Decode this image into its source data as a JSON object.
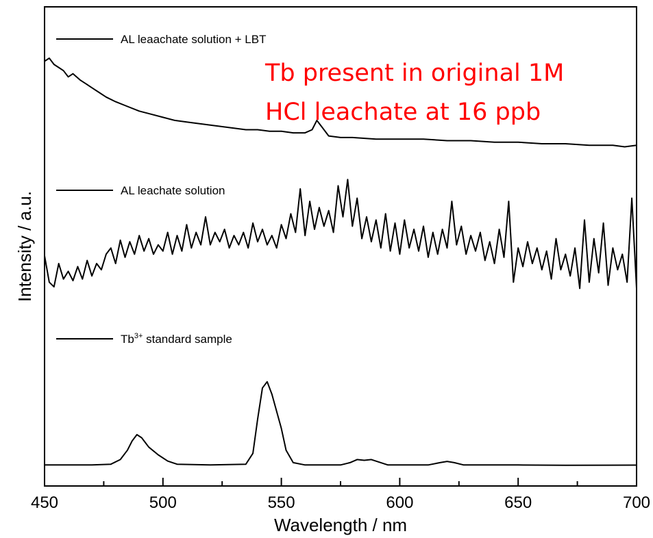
{
  "chart_data": {
    "type": "line",
    "xlabel": "Wavelength / nm",
    "ylabel": "Intensity / a.u.",
    "xlim": [
      450,
      700
    ],
    "xticks": [
      450,
      500,
      550,
      600,
      650,
      700
    ],
    "y_tick_labels": false,
    "grid": false,
    "line_color": "#000000",
    "annotation": {
      "lines": [
        "Tb present in original 1M",
        "HCl leachate at 16 ppb"
      ],
      "color": "#ff0000"
    },
    "series": [
      {
        "name": "AL leaachate solution + LBT",
        "name_sup": "",
        "name_rest": "",
        "offset": 2.0,
        "points": [
          [
            450,
            0.6
          ],
          [
            452,
            0.62
          ],
          [
            454,
            0.58
          ],
          [
            456,
            0.56
          ],
          [
            458,
            0.54
          ],
          [
            460,
            0.5
          ],
          [
            462,
            0.52
          ],
          [
            465,
            0.48
          ],
          [
            468,
            0.45
          ],
          [
            470,
            0.43
          ],
          [
            473,
            0.4
          ],
          [
            476,
            0.37
          ],
          [
            480,
            0.34
          ],
          [
            485,
            0.31
          ],
          [
            490,
            0.28
          ],
          [
            495,
            0.26
          ],
          [
            500,
            0.24
          ],
          [
            505,
            0.22
          ],
          [
            510,
            0.21
          ],
          [
            515,
            0.2
          ],
          [
            520,
            0.19
          ],
          [
            525,
            0.18
          ],
          [
            530,
            0.17
          ],
          [
            535,
            0.16
          ],
          [
            540,
            0.16
          ],
          [
            545,
            0.15
          ],
          [
            550,
            0.15
          ],
          [
            555,
            0.14
          ],
          [
            560,
            0.14
          ],
          [
            563,
            0.16
          ],
          [
            565,
            0.22
          ],
          [
            567,
            0.18
          ],
          [
            570,
            0.12
          ],
          [
            575,
            0.11
          ],
          [
            580,
            0.11
          ],
          [
            590,
            0.1
          ],
          [
            600,
            0.1
          ],
          [
            610,
            0.1
          ],
          [
            620,
            0.09
          ],
          [
            630,
            0.09
          ],
          [
            640,
            0.08
          ],
          [
            650,
            0.08
          ],
          [
            660,
            0.07
          ],
          [
            670,
            0.07
          ],
          [
            680,
            0.06
          ],
          [
            690,
            0.06
          ],
          [
            695,
            0.05
          ],
          [
            700,
            0.06
          ]
        ]
      },
      {
        "name": "AL leachate solution",
        "name_sup": "",
        "name_rest": "",
        "offset": 1.0,
        "points": [
          [
            450,
            0.35
          ],
          [
            452,
            0.18
          ],
          [
            454,
            0.15
          ],
          [
            456,
            0.3
          ],
          [
            458,
            0.2
          ],
          [
            460,
            0.25
          ],
          [
            462,
            0.19
          ],
          [
            464,
            0.28
          ],
          [
            466,
            0.2
          ],
          [
            468,
            0.32
          ],
          [
            470,
            0.22
          ],
          [
            472,
            0.3
          ],
          [
            474,
            0.26
          ],
          [
            476,
            0.36
          ],
          [
            478,
            0.4
          ],
          [
            480,
            0.3
          ],
          [
            482,
            0.45
          ],
          [
            484,
            0.34
          ],
          [
            486,
            0.44
          ],
          [
            488,
            0.36
          ],
          [
            490,
            0.48
          ],
          [
            492,
            0.38
          ],
          [
            494,
            0.46
          ],
          [
            496,
            0.36
          ],
          [
            498,
            0.42
          ],
          [
            500,
            0.38
          ],
          [
            502,
            0.5
          ],
          [
            504,
            0.36
          ],
          [
            506,
            0.48
          ],
          [
            508,
            0.38
          ],
          [
            510,
            0.55
          ],
          [
            512,
            0.4
          ],
          [
            514,
            0.5
          ],
          [
            516,
            0.42
          ],
          [
            518,
            0.6
          ],
          [
            520,
            0.42
          ],
          [
            522,
            0.5
          ],
          [
            524,
            0.44
          ],
          [
            526,
            0.52
          ],
          [
            528,
            0.4
          ],
          [
            530,
            0.48
          ],
          [
            532,
            0.42
          ],
          [
            534,
            0.5
          ],
          [
            536,
            0.4
          ],
          [
            538,
            0.56
          ],
          [
            540,
            0.44
          ],
          [
            542,
            0.52
          ],
          [
            544,
            0.42
          ],
          [
            546,
            0.48
          ],
          [
            548,
            0.4
          ],
          [
            550,
            0.55
          ],
          [
            552,
            0.46
          ],
          [
            554,
            0.62
          ],
          [
            556,
            0.5
          ],
          [
            558,
            0.78
          ],
          [
            560,
            0.48
          ],
          [
            562,
            0.7
          ],
          [
            564,
            0.52
          ],
          [
            566,
            0.66
          ],
          [
            568,
            0.54
          ],
          [
            570,
            0.64
          ],
          [
            572,
            0.5
          ],
          [
            574,
            0.8
          ],
          [
            576,
            0.6
          ],
          [
            578,
            0.84
          ],
          [
            580,
            0.54
          ],
          [
            582,
            0.72
          ],
          [
            584,
            0.46
          ],
          [
            586,
            0.6
          ],
          [
            588,
            0.44
          ],
          [
            590,
            0.58
          ],
          [
            592,
            0.4
          ],
          [
            594,
            0.62
          ],
          [
            596,
            0.38
          ],
          [
            598,
            0.56
          ],
          [
            600,
            0.36
          ],
          [
            602,
            0.58
          ],
          [
            604,
            0.4
          ],
          [
            606,
            0.52
          ],
          [
            608,
            0.38
          ],
          [
            610,
            0.54
          ],
          [
            612,
            0.34
          ],
          [
            614,
            0.5
          ],
          [
            616,
            0.36
          ],
          [
            618,
            0.52
          ],
          [
            620,
            0.4
          ],
          [
            622,
            0.7
          ],
          [
            624,
            0.42
          ],
          [
            626,
            0.54
          ],
          [
            628,
            0.36
          ],
          [
            630,
            0.48
          ],
          [
            632,
            0.38
          ],
          [
            634,
            0.5
          ],
          [
            636,
            0.32
          ],
          [
            638,
            0.44
          ],
          [
            640,
            0.3
          ],
          [
            642,
            0.52
          ],
          [
            644,
            0.34
          ],
          [
            646,
            0.7
          ],
          [
            648,
            0.18
          ],
          [
            650,
            0.4
          ],
          [
            652,
            0.28
          ],
          [
            654,
            0.44
          ],
          [
            656,
            0.3
          ],
          [
            658,
            0.4
          ],
          [
            660,
            0.26
          ],
          [
            662,
            0.38
          ],
          [
            664,
            0.2
          ],
          [
            666,
            0.46
          ],
          [
            668,
            0.26
          ],
          [
            670,
            0.36
          ],
          [
            672,
            0.22
          ],
          [
            674,
            0.4
          ],
          [
            676,
            0.14
          ],
          [
            678,
            0.58
          ],
          [
            680,
            0.18
          ],
          [
            682,
            0.46
          ],
          [
            684,
            0.24
          ],
          [
            686,
            0.56
          ],
          [
            688,
            0.16
          ],
          [
            690,
            0.4
          ],
          [
            692,
            0.26
          ],
          [
            694,
            0.36
          ],
          [
            696,
            0.18
          ],
          [
            698,
            0.72
          ],
          [
            700,
            0.14
          ]
        ]
      },
      {
        "name": "Tb",
        "name_sup": "3+",
        "name_rest": " standard sample",
        "offset": 0.0,
        "points": [
          [
            450,
            0.005
          ],
          [
            470,
            0.005
          ],
          [
            478,
            0.01
          ],
          [
            482,
            0.04
          ],
          [
            485,
            0.1
          ],
          [
            487,
            0.16
          ],
          [
            489,
            0.2
          ],
          [
            491,
            0.18
          ],
          [
            494,
            0.12
          ],
          [
            498,
            0.07
          ],
          [
            502,
            0.03
          ],
          [
            506,
            0.01
          ],
          [
            520,
            0.005
          ],
          [
            535,
            0.01
          ],
          [
            538,
            0.08
          ],
          [
            540,
            0.3
          ],
          [
            542,
            0.5
          ],
          [
            544,
            0.54
          ],
          [
            546,
            0.46
          ],
          [
            548,
            0.35
          ],
          [
            550,
            0.24
          ],
          [
            552,
            0.1
          ],
          [
            555,
            0.02
          ],
          [
            560,
            0.005
          ],
          [
            575,
            0.005
          ],
          [
            579,
            0.02
          ],
          [
            582,
            0.04
          ],
          [
            585,
            0.035
          ],
          [
            588,
            0.04
          ],
          [
            591,
            0.025
          ],
          [
            595,
            0.005
          ],
          [
            612,
            0.005
          ],
          [
            617,
            0.02
          ],
          [
            620,
            0.028
          ],
          [
            623,
            0.02
          ],
          [
            627,
            0.005
          ],
          [
            650,
            0.005
          ],
          [
            670,
            0.003
          ],
          [
            700,
            0.004
          ]
        ]
      }
    ]
  }
}
